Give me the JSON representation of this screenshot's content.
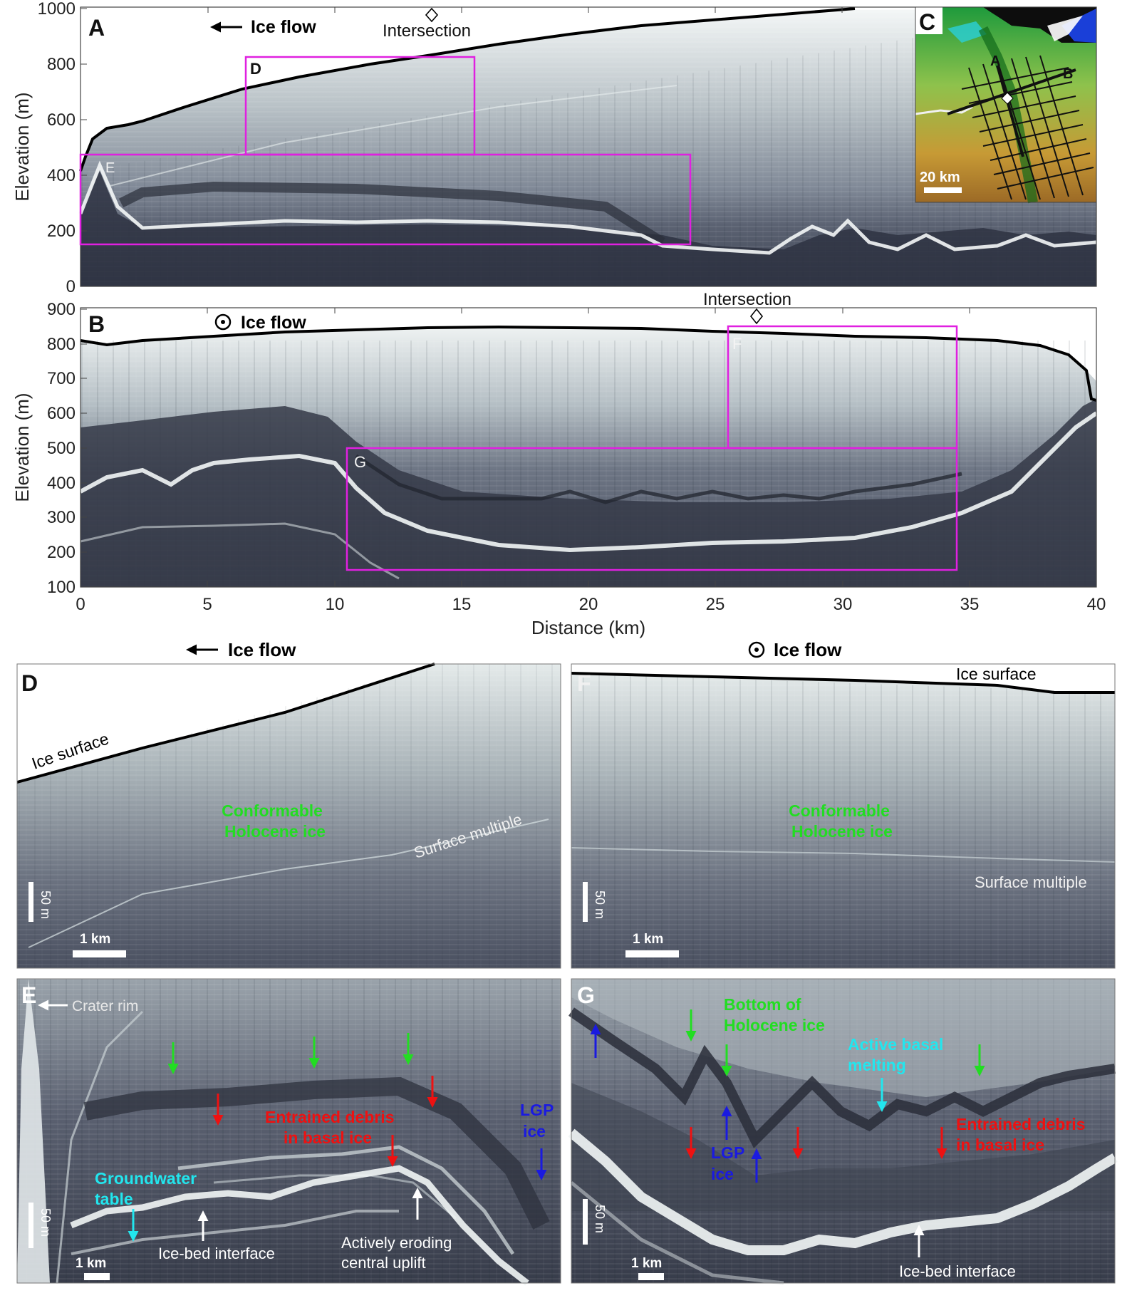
{
  "panel_letters": {
    "a": "A",
    "b": "B",
    "c": "C",
    "d": "D",
    "e": "E",
    "f": "F",
    "g": "G"
  },
  "panel_a": {
    "ylabel": "Elevation (m)",
    "yticks": [
      "1000",
      "800",
      "600",
      "400",
      "200",
      "0"
    ],
    "flow_label": "Ice flow",
    "intersection_label": "Intersection",
    "box_labels": [
      "D",
      "E"
    ]
  },
  "panel_b": {
    "ylabel": "Elevation (m)",
    "yticks": [
      "900",
      "800",
      "700",
      "600",
      "500",
      "400",
      "300",
      "200",
      "100"
    ],
    "flow_label": "Ice flow",
    "intersection_label": "Intersection",
    "box_labels": [
      "F",
      "G"
    ],
    "xlabel": "Distance (km)",
    "xticks": [
      "0",
      "5",
      "10",
      "15",
      "20",
      "25",
      "30",
      "35",
      "40"
    ]
  },
  "panel_c": {
    "line_labels": [
      "A",
      "B"
    ],
    "scale": "20 km"
  },
  "panel_d": {
    "flow_label": "Ice flow",
    "ice_surface": "Ice surface",
    "conformable": [
      "Conformable",
      "Holocene ice"
    ],
    "multiple": "Surface multiple",
    "vscale": "50 m",
    "hscale": "1 km"
  },
  "panel_f": {
    "flow_label": "Ice flow",
    "ice_surface": "Ice surface",
    "conformable": [
      "Conformable",
      "Holocene ice"
    ],
    "multiple": "Surface multiple",
    "vscale": "50 m",
    "hscale": "1 km"
  },
  "panel_e": {
    "crater_rim": "Crater rim",
    "debris": [
      "Entrained debris",
      "in basal ice"
    ],
    "lgp": [
      "LGP",
      "ice"
    ],
    "groundwater": [
      "Groundwater",
      "table"
    ],
    "interface": "Ice-bed interface",
    "eroding": [
      "Actively eroding",
      "central uplift"
    ],
    "vscale": "50 m",
    "hscale": "1 km"
  },
  "panel_g": {
    "holocene_bottom": [
      "Bottom of",
      "Holocene ice"
    ],
    "melting": [
      "Active basal",
      "melting"
    ],
    "debris": [
      "Entrained debris",
      "in basal ice"
    ],
    "lgp": [
      "LGP",
      "ice"
    ],
    "interface": "Ice-bed interface",
    "vscale": "50 m",
    "hscale": "1 km"
  },
  "colors": {
    "box": "#e020e0",
    "green": "#22dd22",
    "red": "#ee1111",
    "blue": "#1a1ae0",
    "cyan": "#22e6ee"
  }
}
